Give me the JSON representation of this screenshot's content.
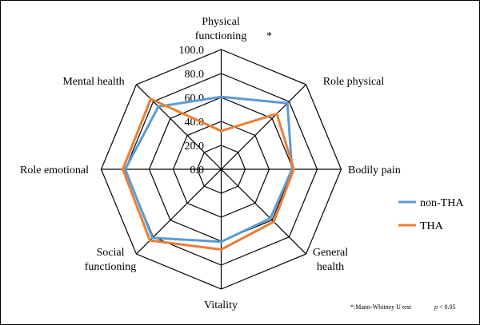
{
  "chart_data": {
    "type": "radar",
    "axes": [
      "Physical functioning",
      "Role physical",
      "Bodily pain",
      "General health",
      "Vitality",
      "Social functioning",
      "Role emotional",
      "Mental health"
    ],
    "axis_label_lines": [
      [
        "Physical",
        "functioning"
      ],
      [
        "Role physical"
      ],
      [
        "Bodily pain"
      ],
      [
        "General",
        "health"
      ],
      [
        "Vitality"
      ],
      [
        "Social",
        "functioning"
      ],
      [
        "Role emotional"
      ],
      [
        "Mental health"
      ]
    ],
    "significance_marker": "*",
    "significant_axes": [
      "Physical functioning"
    ],
    "range": [
      0,
      100
    ],
    "ticks": [
      "0.0",
      "20.0",
      "40.0",
      "60.0",
      "80.0",
      "100.0"
    ],
    "tick_values": [
      0,
      20,
      40,
      60,
      80,
      100
    ],
    "grid": true,
    "legend_position": "right",
    "series": [
      {
        "name": "non-THA",
        "color": "#5B9BD5",
        "values": [
          60.5,
          78,
          59,
          58,
          60.5,
          81,
          80,
          74
        ]
      },
      {
        "name": "THA",
        "color": "#ED7D31",
        "values": [
          32,
          65.5,
          60.5,
          62,
          67,
          84,
          82,
          83
        ]
      }
    ],
    "footnote": {
      "prefix": "*:Mann-Whitney U test",
      "p_label": "p",
      "condition": "< 0.05"
    }
  }
}
